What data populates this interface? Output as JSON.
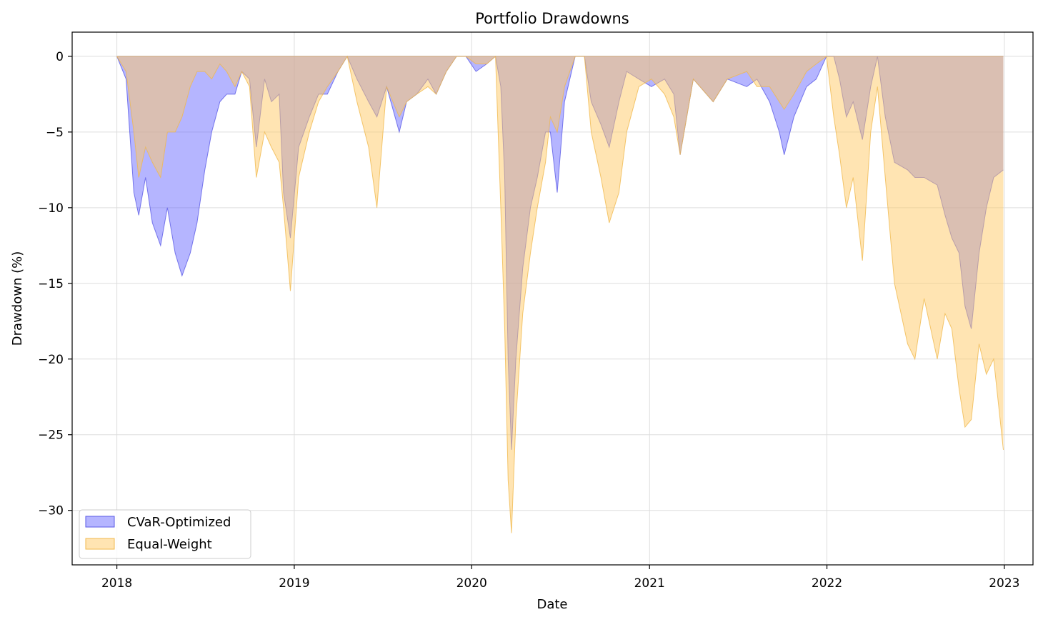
{
  "chart_data": {
    "type": "area",
    "title": "Portfolio Drawdowns",
    "xlabel": "Date",
    "ylabel": "Drawdown (%)",
    "xlim": [
      "2017-10-01",
      "2023-03-01"
    ],
    "ylim": [
      -33.6,
      1.6
    ],
    "grid": true,
    "legend_position": "lower-left",
    "x_ticks": [
      "2018-01-01",
      "2019-01-01",
      "2020-01-01",
      "2021-01-01",
      "2022-01-01",
      "2023-01-01"
    ],
    "x_tick_labels": [
      "2018",
      "2019",
      "2020",
      "2021",
      "2022",
      "2023"
    ],
    "y_ticks": [
      0,
      -5,
      -10,
      -15,
      -20,
      -25,
      -30
    ],
    "y_tick_labels": [
      "0",
      "−5",
      "−10",
      "−15",
      "−20",
      "−25",
      "−30"
    ],
    "series": [
      {
        "name": "CVaR-Optimized",
        "color": "#6b6bff",
        "edge_color": "#5a5ae6",
        "x": [
          "2018-01-01",
          "2018-01-20",
          "2018-02-05",
          "2018-02-15",
          "2018-03-01",
          "2018-03-15",
          "2018-04-01",
          "2018-04-15",
          "2018-05-01",
          "2018-05-15",
          "2018-06-01",
          "2018-06-15",
          "2018-07-01",
          "2018-07-15",
          "2018-08-01",
          "2018-08-15",
          "2018-09-01",
          "2018-09-15",
          "2018-10-01",
          "2018-10-15",
          "2018-11-01",
          "2018-11-15",
          "2018-12-01",
          "2018-12-10",
          "2018-12-24",
          "2019-01-10",
          "2019-02-01",
          "2019-02-20",
          "2019-03-10",
          "2019-04-01",
          "2019-04-20",
          "2019-05-10",
          "2019-06-03",
          "2019-06-20",
          "2019-07-10",
          "2019-08-05",
          "2019-08-20",
          "2019-09-10",
          "2019-10-03",
          "2019-10-20",
          "2019-11-10",
          "2019-12-01",
          "2019-12-20",
          "2020-01-10",
          "2020-02-01",
          "2020-02-19",
          "2020-03-01",
          "2020-03-09",
          "2020-03-16",
          "2020-03-23",
          "2020-04-01",
          "2020-04-15",
          "2020-05-01",
          "2020-05-15",
          "2020-06-01",
          "2020-06-11",
          "2020-06-25",
          "2020-07-10",
          "2020-08-01",
          "2020-08-20",
          "2020-09-03",
          "2020-09-23",
          "2020-10-10",
          "2020-10-30",
          "2020-11-15",
          "2020-12-10",
          "2021-01-05",
          "2021-02-01",
          "2021-02-20",
          "2021-03-05",
          "2021-04-01",
          "2021-05-12",
          "2021-06-10",
          "2021-07-20",
          "2021-08-10",
          "2021-09-05",
          "2021-09-25",
          "2021-10-05",
          "2021-10-25",
          "2021-11-20",
          "2021-12-10",
          "2021-12-31",
          "2022-01-15",
          "2022-01-27",
          "2022-02-10",
          "2022-02-24",
          "2022-03-15",
          "2022-04-01",
          "2022-04-15",
          "2022-05-01",
          "2022-05-20",
          "2022-06-16",
          "2022-07-01",
          "2022-07-20",
          "2022-08-16",
          "2022-09-01",
          "2022-09-15",
          "2022-09-30",
          "2022-10-12",
          "2022-10-25",
          "2022-11-10",
          "2022-11-25",
          "2022-12-10",
          "2022-12-30"
        ],
        "values": [
          0,
          -1.5,
          -9,
          -10.5,
          -8,
          -11,
          -12.5,
          -10,
          -13,
          -14.5,
          -13,
          -11,
          -7.5,
          -5,
          -3,
          -2.5,
          -2.5,
          -1,
          -1.5,
          -6,
          -1.5,
          -3,
          -2.5,
          -9,
          -12,
          -6,
          -4,
          -2.5,
          -2.5,
          -1,
          0,
          -1.5,
          -3,
          -4,
          -2,
          -5,
          -3,
          -2.5,
          -1.5,
          -2.5,
          -1,
          0,
          0,
          -1,
          -0.5,
          0,
          -2,
          -8,
          -20,
          -26,
          -20,
          -14,
          -10,
          -8,
          -5,
          -5,
          -9,
          -3,
          0,
          0,
          -3,
          -4.5,
          -6,
          -3,
          -1,
          -1.5,
          -2,
          -1.5,
          -2.5,
          -6.5,
          -1.5,
          -3,
          -1.5,
          -2,
          -1.5,
          -3,
          -5,
          -6.5,
          -4,
          -2,
          -1.5,
          0,
          0,
          -1.5,
          -4,
          -3,
          -5.5,
          -2,
          0,
          -4,
          -7,
          -7.5,
          -8,
          -8,
          -8.5,
          -10.5,
          -12,
          -13,
          -16.5,
          -18,
          -13,
          -10,
          -8,
          -7.5
        ]
      },
      {
        "name": "Equal-Weight",
        "color": "#ffc966",
        "edge_color": "#f0b94d",
        "x": [
          "2018-01-01",
          "2018-01-20",
          "2018-02-05",
          "2018-02-15",
          "2018-03-01",
          "2018-03-15",
          "2018-04-01",
          "2018-04-15",
          "2018-05-01",
          "2018-05-15",
          "2018-06-01",
          "2018-06-15",
          "2018-07-01",
          "2018-07-15",
          "2018-08-01",
          "2018-08-15",
          "2018-09-01",
          "2018-09-15",
          "2018-10-01",
          "2018-10-15",
          "2018-11-01",
          "2018-11-15",
          "2018-12-01",
          "2018-12-10",
          "2018-12-24",
          "2019-01-10",
          "2019-02-01",
          "2019-02-20",
          "2019-03-10",
          "2019-04-01",
          "2019-04-20",
          "2019-05-10",
          "2019-06-03",
          "2019-06-20",
          "2019-07-10",
          "2019-08-05",
          "2019-08-20",
          "2019-09-10",
          "2019-10-03",
          "2019-10-20",
          "2019-11-10",
          "2019-12-01",
          "2019-12-20",
          "2020-01-10",
          "2020-02-01",
          "2020-02-19",
          "2020-03-01",
          "2020-03-09",
          "2020-03-16",
          "2020-03-23",
          "2020-04-01",
          "2020-04-15",
          "2020-05-01",
          "2020-05-15",
          "2020-06-01",
          "2020-06-11",
          "2020-06-25",
          "2020-07-10",
          "2020-08-01",
          "2020-08-20",
          "2020-09-03",
          "2020-09-23",
          "2020-10-10",
          "2020-10-30",
          "2020-11-15",
          "2020-12-10",
          "2021-01-05",
          "2021-02-01",
          "2021-02-20",
          "2021-03-05",
          "2021-04-01",
          "2021-05-12",
          "2021-06-10",
          "2021-07-20",
          "2021-08-10",
          "2021-09-05",
          "2021-09-25",
          "2021-10-05",
          "2021-10-25",
          "2021-11-20",
          "2021-12-10",
          "2021-12-31",
          "2022-01-15",
          "2022-01-27",
          "2022-02-10",
          "2022-02-24",
          "2022-03-15",
          "2022-04-01",
          "2022-04-15",
          "2022-05-01",
          "2022-05-20",
          "2022-06-16",
          "2022-07-01",
          "2022-07-20",
          "2022-08-16",
          "2022-09-01",
          "2022-09-15",
          "2022-09-30",
          "2022-10-12",
          "2022-10-25",
          "2022-11-10",
          "2022-11-25",
          "2022-12-10",
          "2022-12-30"
        ],
        "values": [
          0,
          -1,
          -5,
          -8,
          -6,
          -7,
          -8,
          -5,
          -5,
          -4,
          -2,
          -1,
          -1,
          -1.5,
          -0.5,
          -1,
          -2,
          -1,
          -2,
          -8,
          -5,
          -6,
          -7,
          -10,
          -15.5,
          -8,
          -5,
          -3,
          -2,
          -1,
          0,
          -3,
          -6,
          -10,
          -2,
          -4,
          -3,
          -2.5,
          -2,
          -2.5,
          -1,
          0,
          0,
          -0.5,
          -0.5,
          0,
          -10,
          -18,
          -28,
          -31.5,
          -24,
          -17,
          -13,
          -10,
          -7,
          -4,
          -5,
          -2,
          0,
          0,
          -5,
          -8,
          -11,
          -9,
          -5,
          -2,
          -1.5,
          -2.5,
          -4,
          -6.5,
          -1.5,
          -3,
          -1.5,
          -1,
          -2,
          -2,
          -3,
          -3.5,
          -2.5,
          -1,
          -0.5,
          0,
          -4,
          -6.5,
          -10,
          -8,
          -13.5,
          -5,
          -2,
          -8,
          -15,
          -19,
          -20,
          -16,
          -20,
          -17,
          -18,
          -22,
          -24.5,
          -24,
          -19,
          -21,
          -20,
          -26
        ]
      }
    ]
  }
}
